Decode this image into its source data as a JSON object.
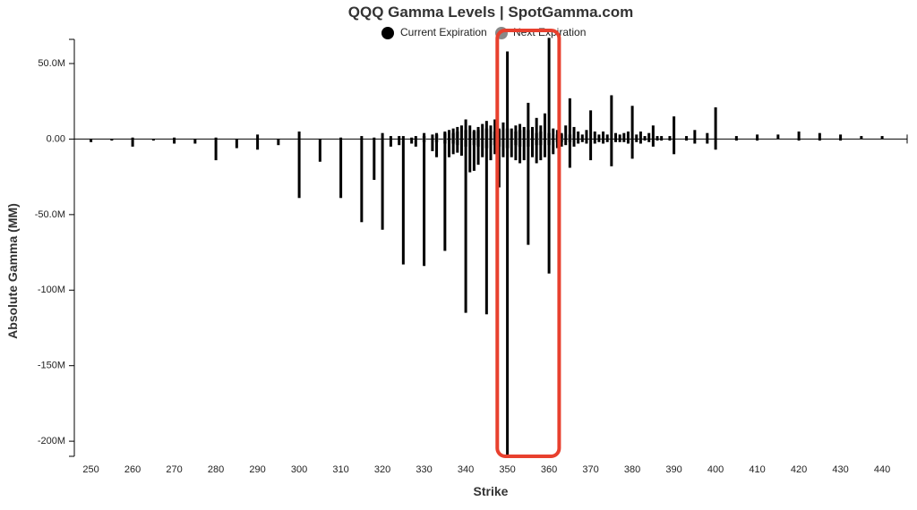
{
  "chart_data": {
    "type": "bar",
    "title": "QQQ Gamma Levels | SpotGamma.com",
    "xlabel": "Strike",
    "ylabel": "Absolute Gamma (MM)",
    "xlim": [
      246,
      446
    ],
    "ylim": [
      -210,
      66
    ],
    "x_ticks": [
      250,
      260,
      270,
      280,
      290,
      300,
      310,
      320,
      330,
      340,
      350,
      360,
      370,
      380,
      390,
      400,
      410,
      420,
      430,
      440
    ],
    "y_ticks": [
      50,
      0,
      -50,
      -100,
      -150,
      -200
    ],
    "y_tick_labels": [
      "50.0M",
      "0.00",
      "-50.0M",
      "-100M",
      "-150M",
      "-200M"
    ],
    "legend_position": "top-center",
    "colors": {
      "current": "#000000",
      "next": "#9e9e9e",
      "legend_next_marker": "#888888",
      "highlight": "#e8402e"
    },
    "series": [
      {
        "name": "Current Expiration",
        "bars": [
          {
            "x": 250,
            "pos": 0,
            "neg": -2
          },
          {
            "x": 255,
            "pos": 0,
            "neg": -1
          },
          {
            "x": 260,
            "pos": 1,
            "neg": -5
          },
          {
            "x": 265,
            "pos": 0,
            "neg": -1
          },
          {
            "x": 270,
            "pos": 1,
            "neg": -3
          },
          {
            "x": 275,
            "pos": 0,
            "neg": -3
          },
          {
            "x": 280,
            "pos": 1,
            "neg": -14
          },
          {
            "x": 285,
            "pos": 0,
            "neg": -6
          },
          {
            "x": 290,
            "pos": 3,
            "neg": -7
          },
          {
            "x": 295,
            "pos": 0,
            "neg": -4
          },
          {
            "x": 300,
            "pos": 5,
            "neg": -39
          },
          {
            "x": 305,
            "pos": 0,
            "neg": -15
          },
          {
            "x": 310,
            "pos": 1,
            "neg": -39
          },
          {
            "x": 315,
            "pos": 2,
            "neg": -55
          },
          {
            "x": 318,
            "pos": 1,
            "neg": -27
          },
          {
            "x": 320,
            "pos": 4,
            "neg": -60
          },
          {
            "x": 322,
            "pos": 2,
            "neg": -5
          },
          {
            "x": 324,
            "pos": 2,
            "neg": -4
          },
          {
            "x": 325,
            "pos": 2,
            "neg": -83
          },
          {
            "x": 327,
            "pos": 1,
            "neg": -3
          },
          {
            "x": 328,
            "pos": 2,
            "neg": -5
          },
          {
            "x": 330,
            "pos": 4,
            "neg": -84
          },
          {
            "x": 332,
            "pos": 3,
            "neg": -8
          },
          {
            "x": 333,
            "pos": 4,
            "neg": -12
          },
          {
            "x": 335,
            "pos": 5,
            "neg": -74
          },
          {
            "x": 336,
            "pos": 6,
            "neg": -12
          },
          {
            "x": 337,
            "pos": 7,
            "neg": -10
          },
          {
            "x": 338,
            "pos": 8,
            "neg": -9
          },
          {
            "x": 339,
            "pos": 9,
            "neg": -11
          },
          {
            "x": 340,
            "pos": 13,
            "neg": -115
          },
          {
            "x": 341,
            "pos": 9,
            "neg": -22
          },
          {
            "x": 342,
            "pos": 6,
            "neg": -21
          },
          {
            "x": 343,
            "pos": 8,
            "neg": -17
          },
          {
            "x": 344,
            "pos": 10,
            "neg": -12
          },
          {
            "x": 345,
            "pos": 12,
            "neg": -116
          },
          {
            "x": 346,
            "pos": 9,
            "neg": -14
          },
          {
            "x": 347,
            "pos": 13,
            "neg": -10
          },
          {
            "x": 348,
            "pos": 7,
            "neg": -32
          },
          {
            "x": 349,
            "pos": 11,
            "neg": -12
          },
          {
            "x": 350,
            "pos": 58,
            "neg": -209
          },
          {
            "x": 351,
            "pos": 7,
            "neg": -12
          },
          {
            "x": 352,
            "pos": 9,
            "neg": -14
          },
          {
            "x": 353,
            "pos": 10,
            "neg": -16
          },
          {
            "x": 354,
            "pos": 8,
            "neg": -14
          },
          {
            "x": 355,
            "pos": 24,
            "neg": -70
          },
          {
            "x": 356,
            "pos": 8,
            "neg": -12
          },
          {
            "x": 357,
            "pos": 14,
            "neg": -16
          },
          {
            "x": 358,
            "pos": 9,
            "neg": -14
          },
          {
            "x": 359,
            "pos": 17,
            "neg": -12
          },
          {
            "x": 360,
            "pos": 67,
            "neg": -89
          },
          {
            "x": 361,
            "pos": 7,
            "neg": -10
          },
          {
            "x": 362,
            "pos": 6,
            "neg": -6
          },
          {
            "x": 363,
            "pos": 4,
            "neg": -5
          },
          {
            "x": 364,
            "pos": 9,
            "neg": -4
          },
          {
            "x": 365,
            "pos": 27,
            "neg": -19
          },
          {
            "x": 366,
            "pos": 8,
            "neg": -5
          },
          {
            "x": 367,
            "pos": 5,
            "neg": -3
          },
          {
            "x": 368,
            "pos": 3,
            "neg": -2
          },
          {
            "x": 369,
            "pos": 6,
            "neg": -3
          },
          {
            "x": 370,
            "pos": 19,
            "neg": -14
          },
          {
            "x": 371,
            "pos": 5,
            "neg": -3
          },
          {
            "x": 372,
            "pos": 3,
            "neg": -2
          },
          {
            "x": 373,
            "pos": 5,
            "neg": -3
          },
          {
            "x": 374,
            "pos": 3,
            "neg": -2
          },
          {
            "x": 375,
            "pos": 29,
            "neg": -18
          },
          {
            "x": 376,
            "pos": 4,
            "neg": -2
          },
          {
            "x": 377,
            "pos": 3,
            "neg": -2
          },
          {
            "x": 378,
            "pos": 4,
            "neg": -2
          },
          {
            "x": 379,
            "pos": 5,
            "neg": -3
          },
          {
            "x": 380,
            "pos": 22,
            "neg": -13
          },
          {
            "x": 381,
            "pos": 3,
            "neg": -2
          },
          {
            "x": 382,
            "pos": 5,
            "neg": -3
          },
          {
            "x": 383,
            "pos": 2,
            "neg": -1
          },
          {
            "x": 384,
            "pos": 4,
            "neg": -2
          },
          {
            "x": 385,
            "pos": 9,
            "neg": -5
          },
          {
            "x": 386,
            "pos": 2,
            "neg": -1
          },
          {
            "x": 387,
            "pos": 2,
            "neg": -1
          },
          {
            "x": 389,
            "pos": 2,
            "neg": -1
          },
          {
            "x": 390,
            "pos": 15,
            "neg": -10
          },
          {
            "x": 393,
            "pos": 2,
            "neg": -1
          },
          {
            "x": 395,
            "pos": 6,
            "neg": -3
          },
          {
            "x": 398,
            "pos": 4,
            "neg": -3
          },
          {
            "x": 400,
            "pos": 21,
            "neg": -7
          },
          {
            "x": 405,
            "pos": 2,
            "neg": -1
          },
          {
            "x": 410,
            "pos": 3,
            "neg": -1
          },
          {
            "x": 415,
            "pos": 3,
            "neg": 0
          },
          {
            "x": 420,
            "pos": 5,
            "neg": -1
          },
          {
            "x": 425,
            "pos": 4,
            "neg": -1
          },
          {
            "x": 430,
            "pos": 3,
            "neg": -1
          },
          {
            "x": 435,
            "pos": 2,
            "neg": 0
          },
          {
            "x": 440,
            "pos": 2,
            "neg": 0
          }
        ]
      },
      {
        "name": "Next Expiration",
        "bars": [
          {
            "x": 330,
            "pos": 2,
            "neg": -2
          },
          {
            "x": 333,
            "pos": 3,
            "neg": -2
          },
          {
            "x": 335,
            "pos": 4,
            "neg": -3
          },
          {
            "x": 337,
            "pos": 4,
            "neg": -3
          },
          {
            "x": 338,
            "pos": 5,
            "neg": -4
          },
          {
            "x": 340,
            "pos": 6,
            "neg": -5
          },
          {
            "x": 342,
            "pos": 5,
            "neg": -4
          },
          {
            "x": 343,
            "pos": 6,
            "neg": -5
          },
          {
            "x": 345,
            "pos": 7,
            "neg": -6
          },
          {
            "x": 347,
            "pos": 5,
            "neg": -4
          },
          {
            "x": 348,
            "pos": 6,
            "neg": -5
          },
          {
            "x": 350,
            "pos": 7,
            "neg": -6
          },
          {
            "x": 352,
            "pos": 5,
            "neg": -4
          },
          {
            "x": 353,
            "pos": 6,
            "neg": -5
          },
          {
            "x": 355,
            "pos": 6,
            "neg": -5
          },
          {
            "x": 357,
            "pos": 4,
            "neg": -4
          },
          {
            "x": 358,
            "pos": 5,
            "neg": -4
          },
          {
            "x": 360,
            "pos": 4,
            "neg": -4
          },
          {
            "x": 362,
            "pos": 3,
            "neg": -2
          },
          {
            "x": 363,
            "pos": 3,
            "neg": -2
          },
          {
            "x": 365,
            "pos": 3,
            "neg": -2
          }
        ]
      }
    ],
    "highlight_box": {
      "x_range": [
        348,
        362
      ],
      "y_range": [
        -210,
        66
      ]
    }
  }
}
